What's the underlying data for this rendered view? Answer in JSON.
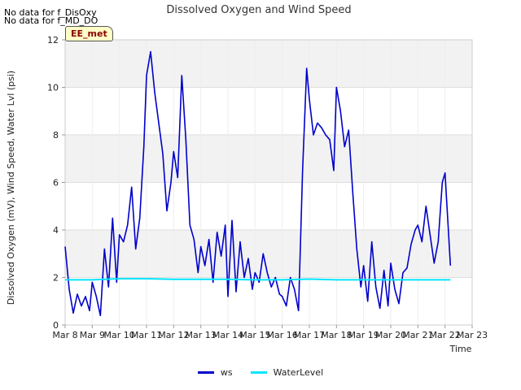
{
  "header": {
    "nodata_1": "No data for f_DisOxy",
    "nodata_2": "No data for f_MD_DO",
    "station_badge": "EE_met"
  },
  "chart_data": {
    "type": "line",
    "title": "Dissolved Oxygen and Wind Speed",
    "xlabel": "Time",
    "ylabel": "Dissolved Oxygen (mV), Wind Speed, Water Lvl (psi)",
    "x_tick_labels": [
      "Mar 8",
      "Mar 9",
      "Mar 10",
      "Mar 11",
      "Mar 12",
      "Mar 13",
      "Mar 14",
      "Mar 15",
      "Mar 16",
      "Mar 17",
      "Mar 18",
      "Mar 19",
      "Mar 20",
      "Mar 21",
      "Mar 22",
      "Mar 23"
    ],
    "x_range_days": [
      8,
      23
    ],
    "ylim": [
      0,
      12
    ],
    "y_ticks": [
      0,
      2,
      4,
      6,
      8,
      10,
      12
    ],
    "grid": true,
    "legend_position": "bottom",
    "series": [
      {
        "name": "ws",
        "color": "#0000cc",
        "x_day": [
          8.0,
          8.15,
          8.3,
          8.45,
          8.6,
          8.75,
          8.9,
          9.0,
          9.15,
          9.3,
          9.45,
          9.6,
          9.75,
          9.9,
          10.0,
          10.15,
          10.3,
          10.45,
          10.6,
          10.75,
          10.9,
          11.0,
          11.15,
          11.3,
          11.45,
          11.6,
          11.75,
          11.9,
          12.0,
          12.15,
          12.3,
          12.45,
          12.6,
          12.75,
          12.9,
          13.0,
          13.15,
          13.3,
          13.45,
          13.6,
          13.75,
          13.9,
          14.0,
          14.15,
          14.3,
          14.45,
          14.6,
          14.75,
          14.9,
          15.0,
          15.15,
          15.3,
          15.45,
          15.6,
          15.75,
          15.9,
          16.0,
          16.15,
          16.3,
          16.45,
          16.6,
          16.75,
          16.9,
          17.0,
          17.15,
          17.3,
          17.45,
          17.6,
          17.75,
          17.9,
          18.0,
          18.15,
          18.3,
          18.45,
          18.6,
          18.75,
          18.9,
          19.0,
          19.15,
          19.3,
          19.45,
          19.6,
          19.75,
          19.9,
          20.0,
          20.15,
          20.3,
          20.45,
          20.6,
          20.75,
          20.9,
          21.0,
          21.15,
          21.3,
          21.45,
          21.6,
          21.75,
          21.9,
          22.0,
          22.2
        ],
        "values": [
          3.3,
          1.5,
          0.5,
          1.3,
          0.8,
          1.2,
          0.6,
          1.8,
          1.2,
          0.4,
          3.2,
          1.6,
          4.5,
          1.8,
          3.8,
          3.5,
          4.2,
          5.8,
          3.2,
          4.5,
          7.5,
          10.5,
          11.5,
          9.8,
          8.5,
          7.2,
          4.8,
          6.0,
          7.3,
          6.2,
          10.5,
          7.8,
          4.2,
          3.6,
          2.2,
          3.3,
          2.5,
          3.6,
          1.8,
          3.9,
          2.9,
          4.2,
          1.2,
          4.4,
          1.4,
          3.5,
          2.0,
          2.8,
          1.5,
          2.2,
          1.8,
          3.0,
          2.2,
          1.6,
          2.0,
          1.3,
          1.2,
          0.8,
          2.0,
          1.5,
          0.6,
          6.5,
          10.8,
          9.5,
          8.0,
          8.5,
          8.3,
          8.0,
          7.8,
          6.5,
          10.0,
          9.0,
          7.5,
          8.2,
          5.6,
          3.2,
          1.6,
          2.5,
          1.0,
          3.5,
          1.6,
          0.7,
          2.3,
          0.8,
          2.6,
          1.5,
          0.9,
          2.2,
          2.4,
          3.4,
          4.0,
          4.2,
          3.5,
          5.0,
          3.8,
          2.6,
          3.5,
          6.0,
          6.4,
          2.5
        ]
      },
      {
        "name": "WaterLevel",
        "color": "#00e5ff",
        "x_day": [
          8.0,
          9.0,
          10.0,
          11.0,
          12.0,
          13.0,
          14.0,
          15.0,
          16.0,
          17.0,
          18.0,
          19.0,
          20.0,
          21.0,
          22.2
        ],
        "values": [
          1.9,
          1.9,
          1.95,
          1.95,
          1.92,
          1.92,
          1.92,
          1.9,
          1.9,
          1.93,
          1.9,
          1.9,
          1.9,
          1.9,
          1.9
        ]
      }
    ]
  }
}
